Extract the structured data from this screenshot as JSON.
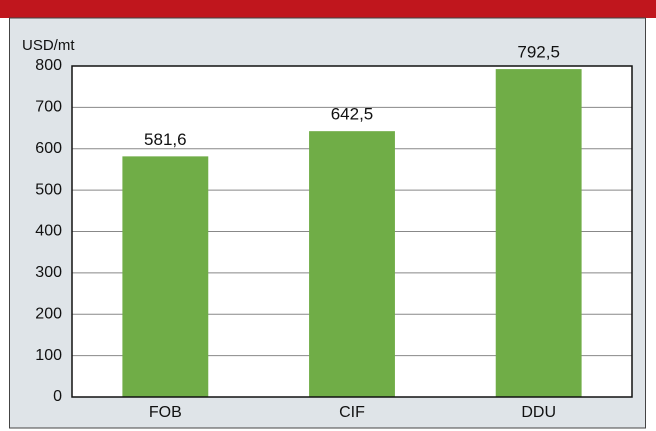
{
  "chart_data": {
    "type": "bar",
    "y_axis_label": "USD/mt",
    "categories": [
      "FOB",
      "CIF",
      "DDU"
    ],
    "values": [
      581.6,
      642.5,
      792.5
    ],
    "value_labels": [
      "581,6",
      "642,5",
      "792,5"
    ],
    "color": "#70ad47",
    "ylim": [
      0,
      800
    ],
    "yticks": [
      0,
      100,
      200,
      300,
      400,
      500,
      600,
      700,
      800
    ],
    "grid": true
  }
}
